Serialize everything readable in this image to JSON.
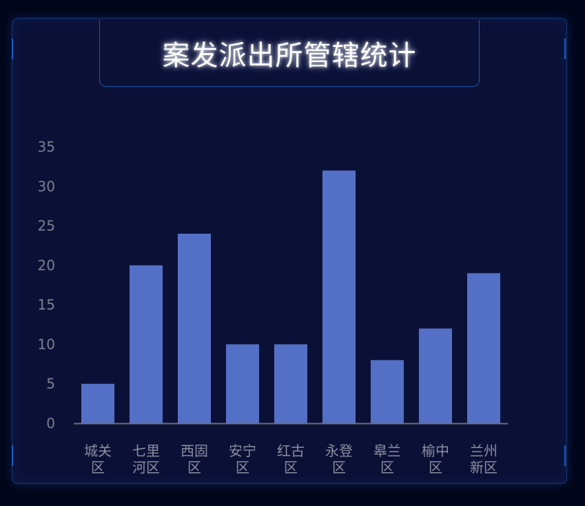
{
  "title": "案发派出所管辖统计",
  "colors": {
    "bar": "#5470c6",
    "axis": "#6e7079",
    "label": "#8b8fa0",
    "panel": "#0b1037",
    "border": "#1d5bb2"
  },
  "chart_data": {
    "type": "bar",
    "title": "案发派出所管辖统计",
    "categories": [
      [
        "城关",
        "区"
      ],
      [
        "七里",
        "河区"
      ],
      [
        "西固",
        "区"
      ],
      [
        "安宁",
        "区"
      ],
      [
        "红古",
        "区"
      ],
      [
        "永登",
        "区"
      ],
      [
        "皋兰",
        "区"
      ],
      [
        "榆中",
        "区"
      ],
      [
        "兰州",
        "新区"
      ]
    ],
    "values": [
      5,
      20,
      24,
      10,
      10,
      32,
      8,
      12,
      19
    ],
    "yticks": [
      "0",
      "5",
      "10",
      "15",
      "20",
      "25",
      "30",
      "35"
    ],
    "ylim": [
      0,
      35
    ],
    "xlabel": "",
    "ylabel": "",
    "grid": false,
    "legend": "none"
  }
}
